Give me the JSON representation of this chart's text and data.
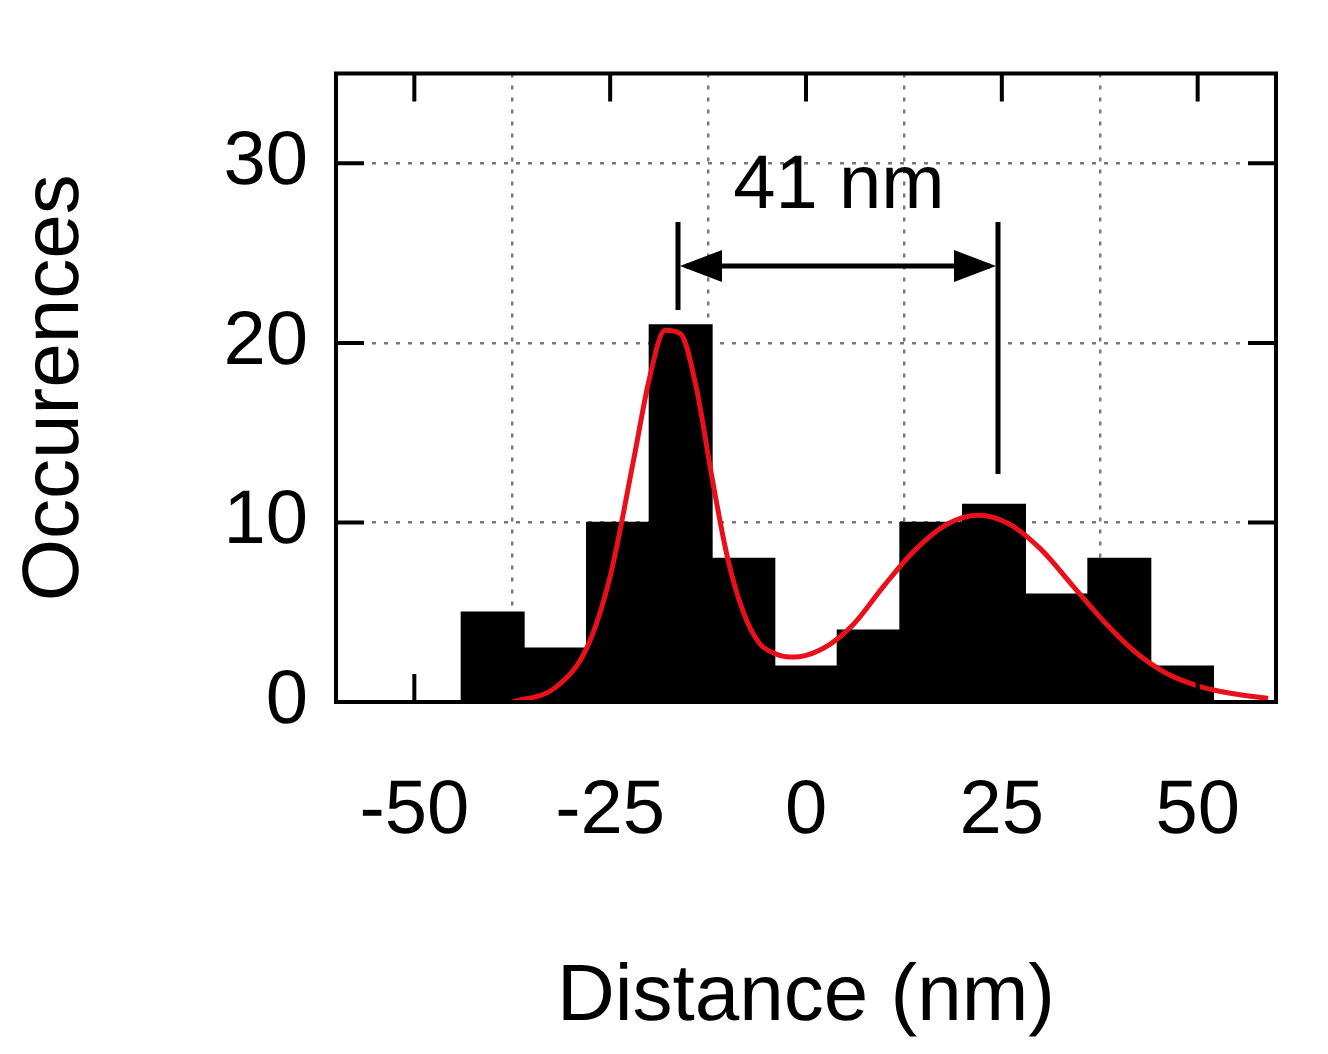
{
  "chart_data": {
    "type": "histogram",
    "xlabel": "Distance (nm)",
    "ylabel": "Occurences",
    "bins": [
      -44,
      -36,
      -28,
      -20,
      -12,
      -4,
      4,
      12,
      20,
      28,
      36,
      44,
      52
    ],
    "values": [
      5,
      3,
      10,
      21,
      8,
      2,
      4,
      10,
      11,
      6,
      8,
      2
    ],
    "color": "#000000",
    "series": [
      {
        "type": "line",
        "color": "#e8101a",
        "x": [
          -37.5,
          -32,
          -28,
          -25,
          -22,
          -20,
          -18,
          -16,
          -14,
          -12,
          -10,
          -8,
          -6,
          -4,
          -2,
          0,
          3,
          6,
          10,
          14,
          18,
          22,
          26,
          30,
          34,
          38,
          42,
          46,
          50,
          54,
          59
        ],
        "values": [
          0,
          0.8,
          3,
          7,
          13.5,
          18,
          20.7,
          20.5,
          17.5,
          12.5,
          8,
          5,
          3.3,
          2.7,
          2.5,
          2.6,
          3.2,
          4.3,
          6.5,
          8.5,
          9.9,
          10.4,
          9.9,
          8.5,
          6.5,
          4.5,
          2.8,
          1.6,
          0.9,
          0.5,
          0.2
        ]
      }
    ],
    "xlim": [
      -60,
      60
    ],
    "xticks": [
      -50,
      -25,
      0,
      25,
      50
    ],
    "ylim": [
      0,
      35
    ],
    "yticks": [
      0,
      10,
      20,
      30
    ],
    "grid": true,
    "marker": "none",
    "annotations": [
      "41 nm"
    ]
  }
}
